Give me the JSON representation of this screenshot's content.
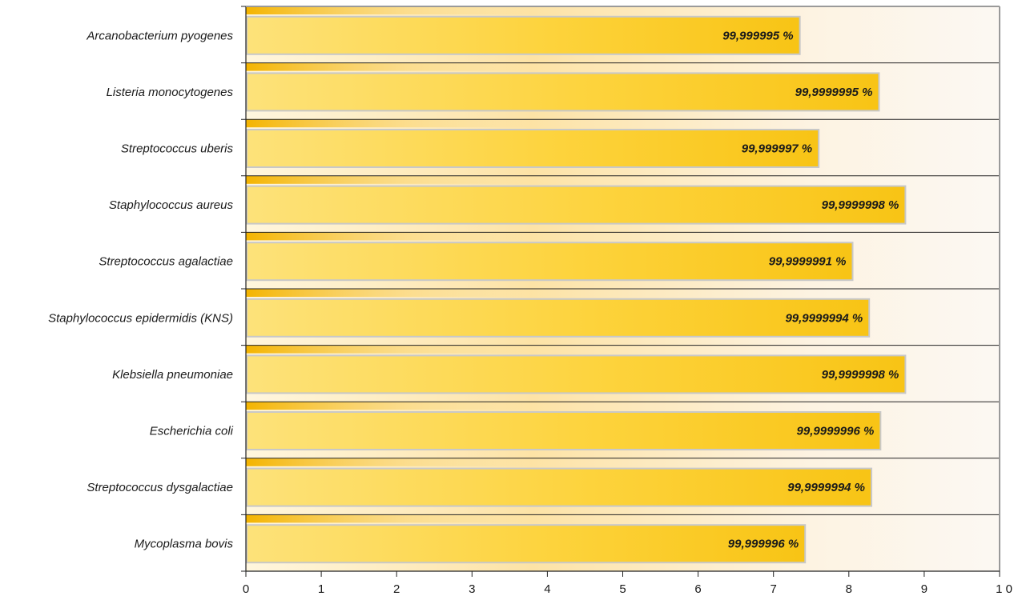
{
  "chart_data": {
    "type": "bar",
    "orientation": "horizontal",
    "title": "",
    "xlabel": "",
    "ylabel": "",
    "xlim": [
      0,
      10
    ],
    "x_ticks": [
      "0",
      "1",
      "2",
      "3",
      "4",
      "5",
      "6",
      "7",
      "8",
      "9",
      "1 0"
    ],
    "grid": "horizontal separators between categories",
    "categories": [
      "Arcanobacterium pyogenes",
      "Listeria monocytogenes",
      "Streptococcus uberis",
      "Staphylococcus aureus",
      "Streptococcus agalactiae",
      "Staphylococcus epidermidis (KNS)",
      "Klebsiella pneumoniae",
      "Escherichia coli",
      "Streptococcus dysgalactiae",
      "Mycoplasma bovis"
    ],
    "values": [
      7.35,
      8.4,
      7.6,
      8.75,
      8.05,
      8.27,
      8.75,
      8.42,
      8.3,
      7.42
    ],
    "value_labels": [
      "99,999995 %",
      "99,9999995 %",
      "99,999997 %",
      "99,9999998 %",
      "99,9999991 %",
      "99,9999994 %",
      "99,9999998 %",
      "99,9999996 %",
      "99,9999994 %",
      "99,999996 %"
    ],
    "colors": {
      "bar_light": "#fde27a",
      "bar_mid": "#fdd33c",
      "bar_dark": "#f8c415",
      "bar_border": "#c8c8c8",
      "background_peak": "#fde3a6"
    }
  }
}
